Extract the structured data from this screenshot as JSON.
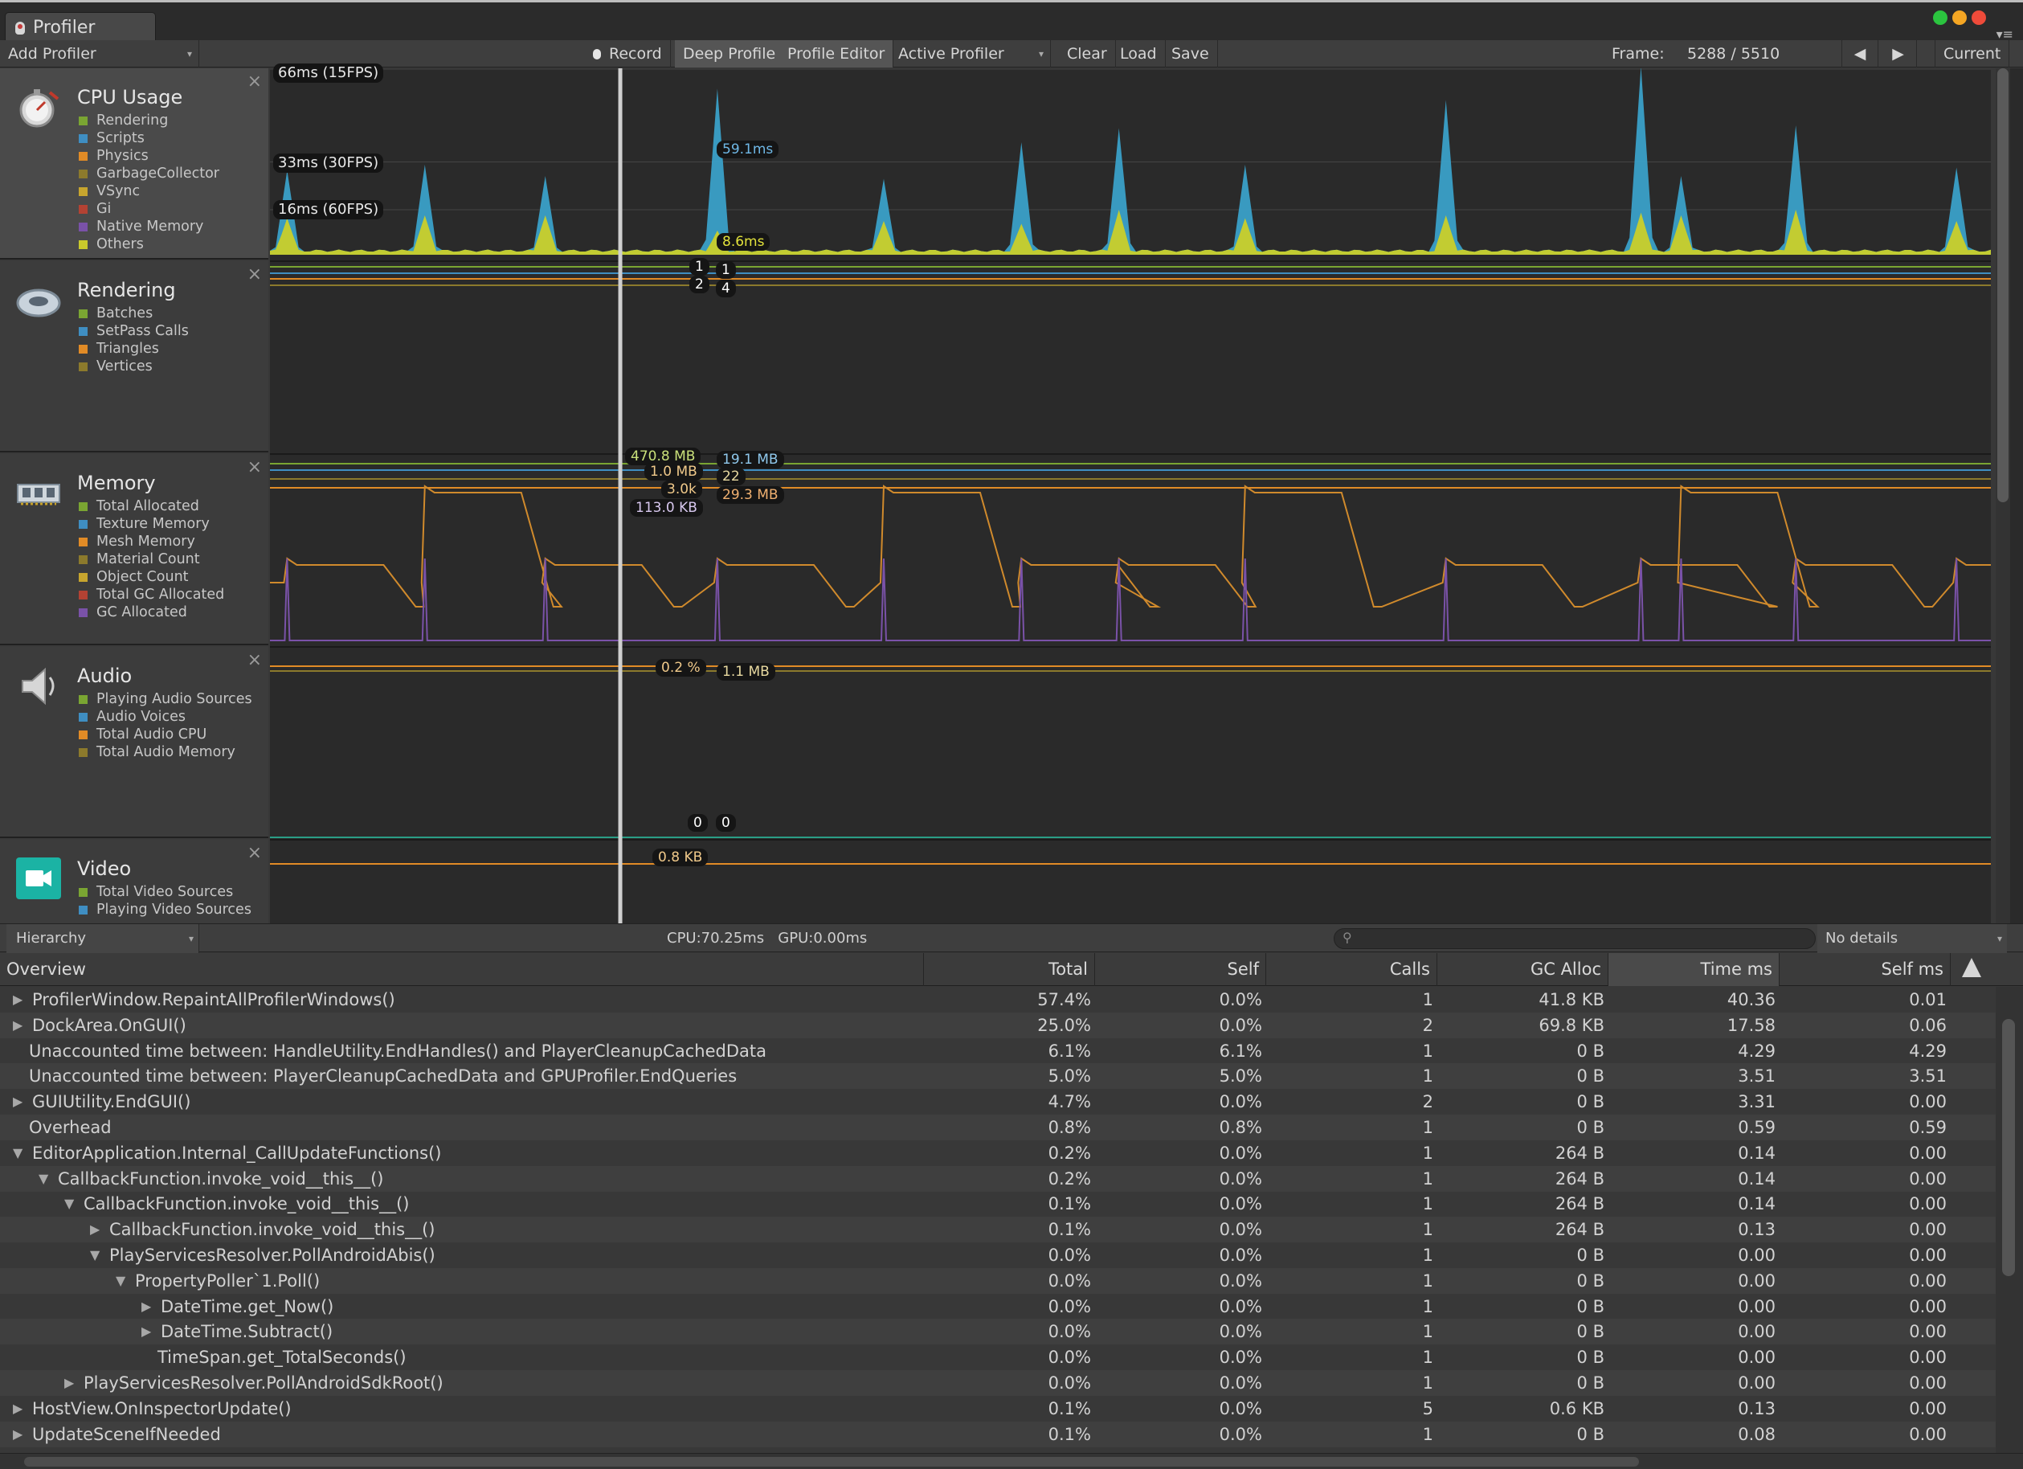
{
  "window": {
    "tab_title": "Profiler",
    "traffic_lights": [
      "#2bc43f",
      "#f5a623",
      "#ee4b3a"
    ],
    "menu_glyph": "▾≡"
  },
  "toolbar": {
    "add_profiler": "Add Profiler",
    "record": "Record",
    "deep_profile": "Deep Profile",
    "profile_editor": "Profile Editor",
    "active_profiler": "Active Profiler",
    "clear": "Clear",
    "load": "Load",
    "save": "Save",
    "frame_label": "Frame:",
    "frame_value": "5288 / 5510",
    "prev_icon": "◀",
    "next_icon": "▶",
    "current": "Current"
  },
  "modules": [
    {
      "title": "CPU Usage",
      "icon": "cpu-stopwatch-icon",
      "legend": [
        {
          "label": "Rendering",
          "color": "#7aa532"
        },
        {
          "label": "Scripts",
          "color": "#3f8ec2"
        },
        {
          "label": "Physics",
          "color": "#e18b26"
        },
        {
          "label": "GarbageCollector",
          "color": "#8c7a2c"
        },
        {
          "label": "VSync",
          "color": "#c7a52e"
        },
        {
          "label": "Gi",
          "color": "#b34233"
        },
        {
          "label": "Native Memory",
          "color": "#7a52a8"
        },
        {
          "label": "Others",
          "color": "#c9c92c"
        }
      ]
    },
    {
      "title": "Rendering",
      "icon": "rendering-disc-icon",
      "legend": [
        {
          "label": "Batches",
          "color": "#7aa532"
        },
        {
          "label": "SetPass Calls",
          "color": "#3f8ec2"
        },
        {
          "label": "Triangles",
          "color": "#e18b26"
        },
        {
          "label": "Vertices",
          "color": "#8c7a2c"
        }
      ]
    },
    {
      "title": "Memory",
      "icon": "memory-chip-icon",
      "legend": [
        {
          "label": "Total Allocated",
          "color": "#7aa532"
        },
        {
          "label": "Texture Memory",
          "color": "#3f8ec2"
        },
        {
          "label": "Mesh Memory",
          "color": "#e18b26"
        },
        {
          "label": "Material Count",
          "color": "#8c7a2c"
        },
        {
          "label": "Object Count",
          "color": "#c7a52e"
        },
        {
          "label": "Total GC Allocated",
          "color": "#b34233"
        },
        {
          "label": "GC Allocated",
          "color": "#7a52a8"
        }
      ]
    },
    {
      "title": "Audio",
      "icon": "audio-speaker-icon",
      "legend": [
        {
          "label": "Playing Audio Sources",
          "color": "#7aa532"
        },
        {
          "label": "Audio Voices",
          "color": "#3f8ec2"
        },
        {
          "label": "Total Audio CPU",
          "color": "#e18b26"
        },
        {
          "label": "Total Audio Memory",
          "color": "#8c7a2c"
        }
      ]
    },
    {
      "title": "Video",
      "icon": "video-camera-icon",
      "legend": [
        {
          "label": "Total Video Sources",
          "color": "#7aa532"
        },
        {
          "label": "Playing Video Sources",
          "color": "#3f8ec2"
        }
      ]
    }
  ],
  "chart_labels": {
    "cpu_grid": [
      "66ms (15FPS)",
      "33ms (30FPS)",
      "16ms (60FPS)"
    ],
    "cpu_scripts": "59.1ms",
    "cpu_others": "8.6ms",
    "rendering": {
      "left_top": "1",
      "left_bottom": "2",
      "right_top": "1",
      "right_bottom": "4"
    },
    "memory": {
      "left": [
        "470.8 MB",
        "1.0 MB",
        "3.0k",
        "113.0 KB"
      ],
      "right": [
        "19.1 MB",
        "22",
        "29.3 MB"
      ]
    },
    "audio": {
      "left": "0.2 %",
      "right": "1.1 MB",
      "bottom_left": "0",
      "bottom_right": "0"
    },
    "video": {
      "left": "0.8 KB"
    }
  },
  "chart_data": {
    "type": "area",
    "title": "CPU Usage",
    "frame_window": [
      0,
      300
    ],
    "selected_frame": 61,
    "y_unit": "ms",
    "gridlines_ms": [
      66,
      33,
      16
    ],
    "spike_frames": [
      3,
      27,
      48,
      78,
      107,
      131,
      148,
      170,
      205,
      239,
      246,
      266,
      294
    ],
    "series": [
      {
        "name": "Scripts",
        "values": [
          30,
          32,
          28,
          59.1,
          27,
          40,
          45,
          32,
          55,
          67,
          28,
          46,
          31
        ]
      },
      {
        "name": "Others",
        "values": [
          13,
          14,
          14,
          8.6,
          12,
          11,
          16,
          13,
          14,
          15,
          14,
          16,
          12
        ]
      }
    ]
  },
  "hierarchy": {
    "view": "Hierarchy",
    "cpu": "CPU:70.25ms",
    "gpu": "GPU:0.00ms",
    "search_placeholder": "",
    "details": "No details"
  },
  "table": {
    "columns": [
      "Overview",
      "Total",
      "Self",
      "Calls",
      "GC Alloc",
      "Time ms",
      "Self ms"
    ],
    "rows": [
      {
        "name": "ProfilerWindow.RepaintAllProfilerWindows()",
        "depth": 0,
        "toggle": "collapsed",
        "total": "57.4%",
        "self": "0.0%",
        "calls": "1",
        "gc": "41.8 KB",
        "time": "40.36",
        "selfms": "0.01"
      },
      {
        "name": "DockArea.OnGUI()",
        "depth": 0,
        "toggle": "collapsed",
        "total": "25.0%",
        "self": "0.0%",
        "calls": "2",
        "gc": "69.8 KB",
        "time": "17.58",
        "selfms": "0.06"
      },
      {
        "name": "Unaccounted time between: HandleUtility.EndHandles() and PlayerCleanupCachedData",
        "depth": 0,
        "toggle": "none",
        "total": "6.1%",
        "self": "6.1%",
        "calls": "1",
        "gc": "0 B",
        "time": "4.29",
        "selfms": "4.29"
      },
      {
        "name": "Unaccounted time between: PlayerCleanupCachedData and GPUProfiler.EndQueries",
        "depth": 0,
        "toggle": "none",
        "total": "5.0%",
        "self": "5.0%",
        "calls": "1",
        "gc": "0 B",
        "time": "3.51",
        "selfms": "3.51"
      },
      {
        "name": "GUIUtility.EndGUI()",
        "depth": 0,
        "toggle": "collapsed",
        "total": "4.7%",
        "self": "0.0%",
        "calls": "2",
        "gc": "0 B",
        "time": "3.31",
        "selfms": "0.00"
      },
      {
        "name": "Overhead",
        "depth": 0,
        "toggle": "none",
        "total": "0.8%",
        "self": "0.8%",
        "calls": "1",
        "gc": "0 B",
        "time": "0.59",
        "selfms": "0.59"
      },
      {
        "name": "EditorApplication.Internal_CallUpdateFunctions()",
        "depth": 0,
        "toggle": "expanded",
        "total": "0.2%",
        "self": "0.0%",
        "calls": "1",
        "gc": "264 B",
        "time": "0.14",
        "selfms": "0.00"
      },
      {
        "name": "CallbackFunction.invoke_void__this__()",
        "depth": 1,
        "toggle": "expanded",
        "total": "0.2%",
        "self": "0.0%",
        "calls": "1",
        "gc": "264 B",
        "time": "0.14",
        "selfms": "0.00"
      },
      {
        "name": "CallbackFunction.invoke_void__this__()",
        "depth": 2,
        "toggle": "expanded",
        "total": "0.1%",
        "self": "0.0%",
        "calls": "1",
        "gc": "264 B",
        "time": "0.14",
        "selfms": "0.00"
      },
      {
        "name": "CallbackFunction.invoke_void__this__()",
        "depth": 3,
        "toggle": "collapsed",
        "total": "0.1%",
        "self": "0.0%",
        "calls": "1",
        "gc": "264 B",
        "time": "0.13",
        "selfms": "0.00"
      },
      {
        "name": "PlayServicesResolver.PollAndroidAbis()",
        "depth": 3,
        "toggle": "expanded",
        "total": "0.0%",
        "self": "0.0%",
        "calls": "1",
        "gc": "0 B",
        "time": "0.00",
        "selfms": "0.00"
      },
      {
        "name": "PropertyPoller`1.Poll()",
        "depth": 4,
        "toggle": "expanded",
        "total": "0.0%",
        "self": "0.0%",
        "calls": "1",
        "gc": "0 B",
        "time": "0.00",
        "selfms": "0.00"
      },
      {
        "name": "DateTime.get_Now()",
        "depth": 5,
        "toggle": "collapsed",
        "total": "0.0%",
        "self": "0.0%",
        "calls": "1",
        "gc": "0 B",
        "time": "0.00",
        "selfms": "0.00"
      },
      {
        "name": "DateTime.Subtract()",
        "depth": 5,
        "toggle": "collapsed",
        "total": "0.0%",
        "self": "0.0%",
        "calls": "1",
        "gc": "0 B",
        "time": "0.00",
        "selfms": "0.00"
      },
      {
        "name": "TimeSpan.get_TotalSeconds()",
        "depth": 5,
        "toggle": "none",
        "total": "0.0%",
        "self": "0.0%",
        "calls": "1",
        "gc": "0 B",
        "time": "0.00",
        "selfms": "0.00"
      },
      {
        "name": "PlayServicesResolver.PollAndroidSdkRoot()",
        "depth": 2,
        "toggle": "collapsed",
        "total": "0.0%",
        "self": "0.0%",
        "calls": "1",
        "gc": "0 B",
        "time": "0.00",
        "selfms": "0.00"
      },
      {
        "name": "HostView.OnInspectorUpdate()",
        "depth": 0,
        "toggle": "collapsed",
        "total": "0.1%",
        "self": "0.0%",
        "calls": "5",
        "gc": "0.6 KB",
        "time": "0.13",
        "selfms": "0.00"
      },
      {
        "name": "UpdateSceneIfNeeded",
        "depth": 0,
        "toggle": "collapsed",
        "total": "0.1%",
        "self": "0.0%",
        "calls": "1",
        "gc": "0 B",
        "time": "0.08",
        "selfms": "0.00"
      }
    ]
  }
}
